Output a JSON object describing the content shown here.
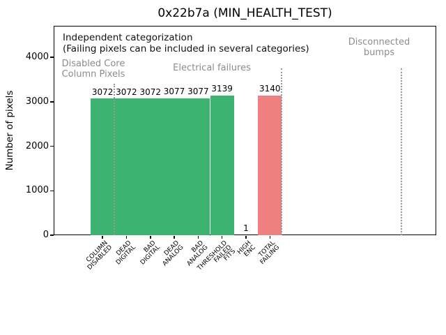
{
  "title": "0x22b7a (MIN_HEALTH_TEST)",
  "colors": {
    "bar_green": "#3cb371",
    "bar_red": "#f08080",
    "section_text_gray": "#8c8c8c",
    "separator_gray": "#969696"
  },
  "annotations": {
    "independent_line1": "Independent categorization",
    "independent_line2": "(Failing pixels can be included in several categories)",
    "section_disabled": "Disabled Core\nColumn Pixels",
    "section_electrical": "Electrical failures",
    "section_disconnected": "Disconnected\nbumps"
  },
  "chart_data": {
    "type": "bar",
    "title": "0x22b7a (MIN_HEALTH_TEST)",
    "xlabel": "",
    "ylabel": "Number of pixels",
    "categories": [
      "COLUMN\nDISABLED",
      "DEAD\nDIGITAL",
      "BAD\nDIGITAL",
      "DEAD\nANALOG",
      "BAD\nANALOG",
      "THRESHOLD\nFAILED\nFITS",
      "HIGH\nENC",
      "TOTAL\nFAILING"
    ],
    "values": [
      3072,
      3072,
      3072,
      3077,
      3077,
      3139,
      1,
      3140
    ],
    "bar_labels": [
      "3072",
      "3072",
      "3072",
      "3077",
      "3077",
      "3139",
      "1",
      "3140"
    ],
    "bar_colors": [
      "#3cb371",
      "#3cb371",
      "#3cb371",
      "#3cb371",
      "#3cb371",
      "#3cb371",
      "#3cb371",
      "#f08080"
    ],
    "yticks": [
      0,
      1000,
      2000,
      3000,
      4000
    ],
    "ylim": [
      0,
      4706
    ],
    "grid": false,
    "legend": "none",
    "separators": [
      {
        "x": 0.5,
        "ymax": 3400
      },
      {
        "x": 7.5,
        "ymax": 3750
      },
      {
        "x": 12.5,
        "ymax": 3750
      }
    ]
  }
}
